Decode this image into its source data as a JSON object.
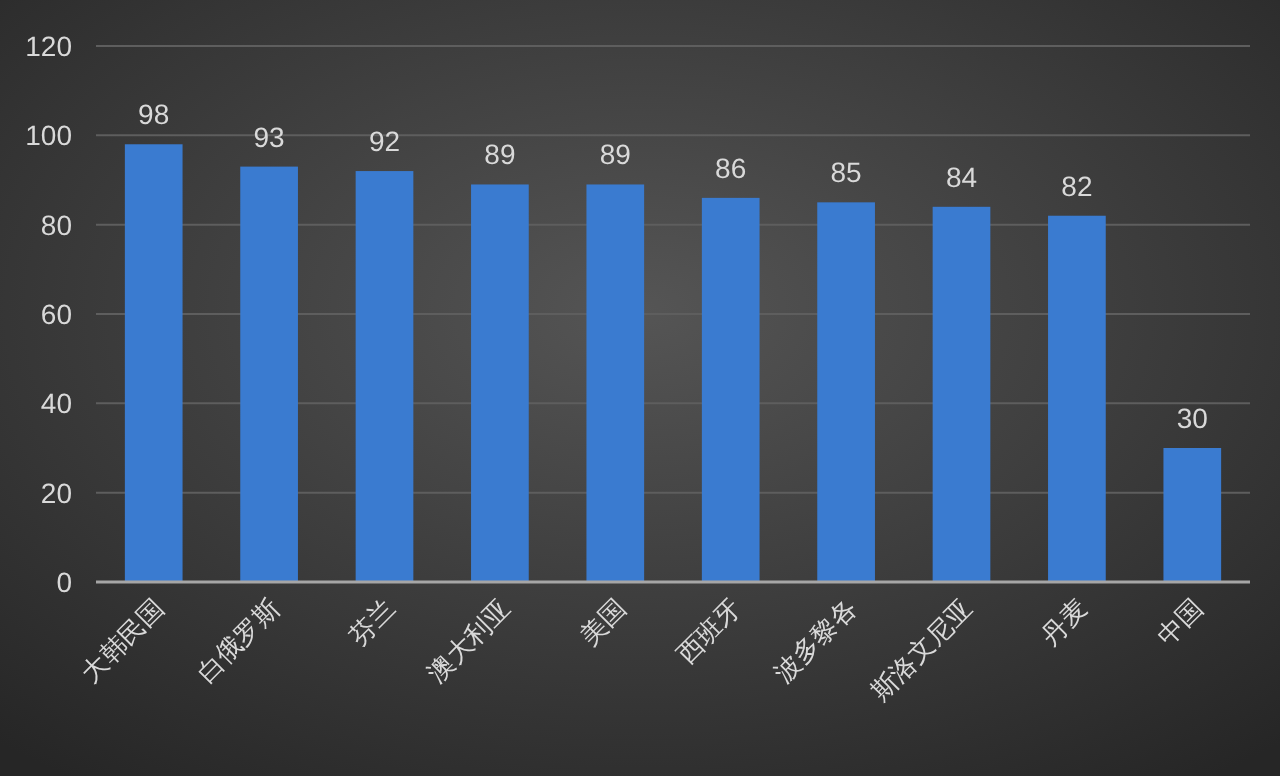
{
  "chart_data": {
    "type": "bar",
    "categories": [
      "大韩民国",
      "白俄罗斯",
      "芬兰",
      "澳大利亚",
      "美国",
      "西班牙",
      "波多黎各",
      "斯洛文尼亚",
      "丹麦",
      "中国"
    ],
    "values": [
      98,
      93,
      92,
      89,
      89,
      86,
      85,
      84,
      82,
      30
    ],
    "color": "#3a7bd0",
    "ylim": [
      0,
      120
    ],
    "yticks": [
      0,
      20,
      40,
      60,
      80,
      100,
      120
    ],
    "grid": "y",
    "data_labels": true
  }
}
